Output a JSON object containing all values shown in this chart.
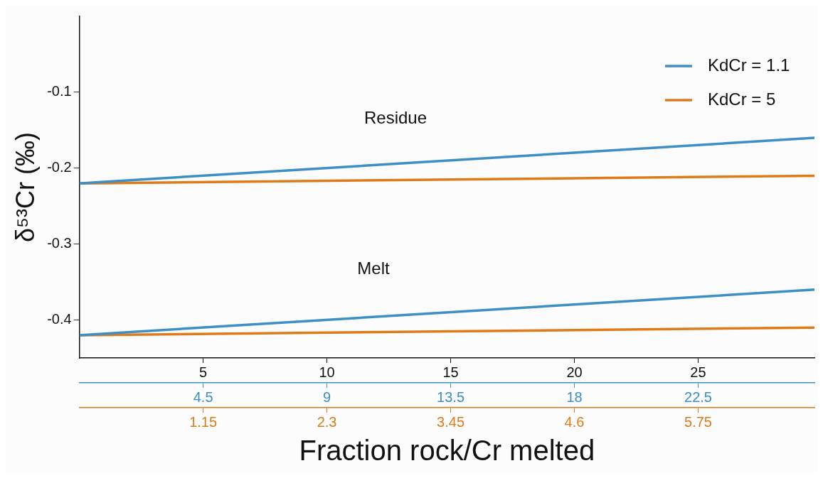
{
  "chart_data": {
    "type": "line",
    "xlabel": "Fraction rock/Cr melted",
    "ylabel": "δ⁵³Cr (‰)",
    "xlim": [
      0,
      29.7
    ],
    "xticks": [
      5,
      10,
      15,
      20,
      25
    ],
    "x2lim": [
      0,
      26.73
    ],
    "x2ticks": [
      4.5,
      9,
      13.5,
      18,
      22.5
    ],
    "ylim": [
      -0.45,
      0
    ],
    "yticks": [
      -0.1,
      -0.2,
      -0.3,
      -0.4
    ],
    "x": [
      0,
      29.7
    ],
    "series": [
      {
        "name": "KdCr = 1.1",
        "color": "#3d8fc6",
        "values": [
          -0.22,
          -0.16
        ]
      },
      {
        "name": "KdCr = 5",
        "color": "#e07b1a",
        "values": [
          -0.22,
          -0.21
        ]
      },
      {
        "color": "#3d8fc6",
        "values": [
          -0.42,
          -0.36
        ]
      },
      {
        "color": "#e07b1a",
        "values": [
          -0.42,
          -0.41
        ]
      }
    ],
    "annotations": [
      "Residue",
      "Melt",
      "1.15",
      "2.3",
      "3.45",
      "4.6",
      "5.75"
    ],
    "legend": "top right",
    "grid": false,
    "marker": "none",
    "line_style": "solid"
  }
}
